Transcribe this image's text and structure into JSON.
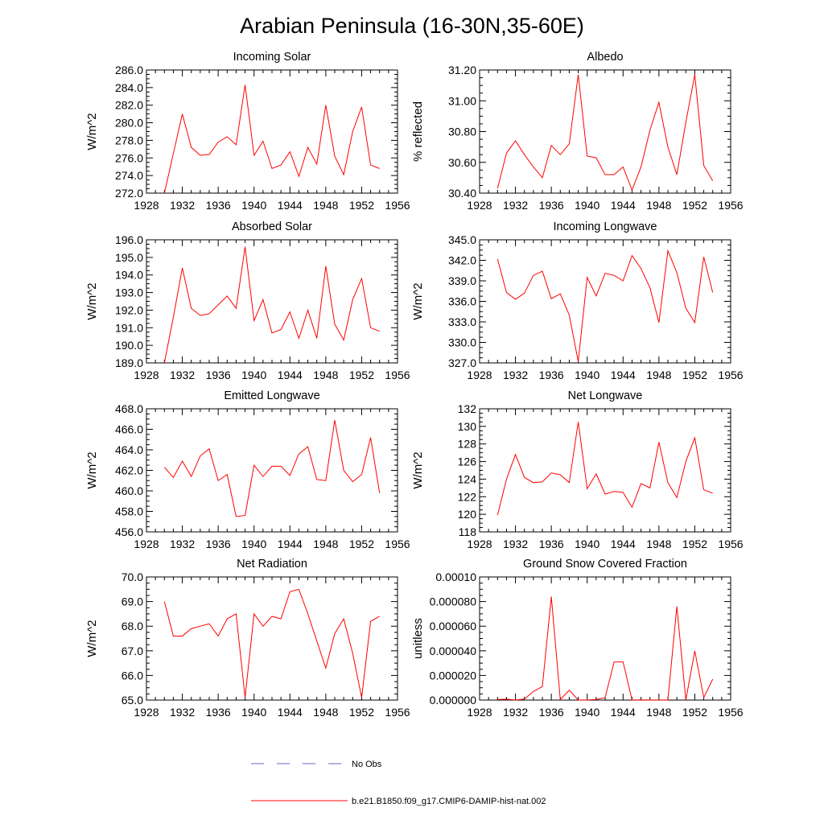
{
  "title": "Arabian Peninsula (16-30N,35-60E)",
  "legend": {
    "items": [
      {
        "label": "No Obs",
        "color": "#6666cc",
        "dashed": true
      },
      {
        "label": "b.e21.B1850.f09_g17.CMIP6-DAMIP-hist-nat.002",
        "color": "#ff0000",
        "dashed": false
      }
    ]
  },
  "chart_data": [
    {
      "type": "line",
      "title": "Incoming Solar",
      "ylabel": "W/m^2",
      "xlim": [
        1928,
        1956
      ],
      "ylim": [
        272,
        286
      ],
      "xticks": [
        1928,
        1932,
        1936,
        1940,
        1944,
        1948,
        1952,
        1956
      ],
      "xtick_labels": [
        "1928",
        "1932",
        "1936",
        "1940",
        "1944",
        "1948",
        "1952",
        "1956"
      ],
      "yticks": [
        272,
        274,
        276,
        278,
        280,
        282,
        284,
        286
      ],
      "ytick_labels": [
        "272.0",
        "274.0",
        "276.0",
        "278.0",
        "280.0",
        "282.0",
        "284.0",
        "286.0"
      ],
      "series": [
        {
          "x": [
            1930,
            1931,
            1932,
            1933,
            1934,
            1935,
            1936,
            1937,
            1938,
            1939,
            1940,
            1941,
            1942,
            1943,
            1944,
            1945,
            1946,
            1947,
            1948,
            1949,
            1950,
            1951,
            1952,
            1953,
            1954
          ],
          "y": [
            272.0,
            276.5,
            281.0,
            277.2,
            276.3,
            276.4,
            277.8,
            278.4,
            277.5,
            284.3,
            276.3,
            277.9,
            274.8,
            275.2,
            276.7,
            273.9,
            277.2,
            275.3,
            282.0,
            276.2,
            274.1,
            279.0,
            281.8,
            275.2,
            274.8
          ]
        }
      ]
    },
    {
      "type": "line",
      "title": "Albedo",
      "ylabel": "% reflected",
      "xlim": [
        1928,
        1956
      ],
      "ylim": [
        30.4,
        31.2
      ],
      "xticks": [
        1928,
        1932,
        1936,
        1940,
        1944,
        1948,
        1952,
        1956
      ],
      "xtick_labels": [
        "1928",
        "1932",
        "1936",
        "1940",
        "1944",
        "1948",
        "1952",
        "1956"
      ],
      "yticks": [
        30.4,
        30.6,
        30.8,
        31.0,
        31.2
      ],
      "ytick_labels": [
        "30.40",
        "30.60",
        "30.80",
        "31.00",
        "31.20"
      ],
      "series": [
        {
          "x": [
            1930,
            1931,
            1932,
            1933,
            1934,
            1935,
            1936,
            1937,
            1938,
            1939,
            1940,
            1941,
            1942,
            1943,
            1944,
            1945,
            1946,
            1947,
            1948,
            1949,
            1950,
            1951,
            1952,
            1953,
            1954
          ],
          "y": [
            30.43,
            30.66,
            30.74,
            30.65,
            30.57,
            30.5,
            30.71,
            30.65,
            30.72,
            31.17,
            30.64,
            30.63,
            30.52,
            30.52,
            30.57,
            30.42,
            30.57,
            30.81,
            30.99,
            30.7,
            30.52,
            30.86,
            31.17,
            30.58,
            30.48
          ]
        }
      ]
    },
    {
      "type": "line",
      "title": "Absorbed Solar",
      "ylabel": "W/m^2",
      "xlim": [
        1928,
        1956
      ],
      "ylim": [
        189,
        196
      ],
      "xticks": [
        1928,
        1932,
        1936,
        1940,
        1944,
        1948,
        1952,
        1956
      ],
      "xtick_labels": [
        "1928",
        "1932",
        "1936",
        "1940",
        "1944",
        "1948",
        "1952",
        "1956"
      ],
      "yticks": [
        189,
        190,
        191,
        192,
        193,
        194,
        195,
        196
      ],
      "ytick_labels": [
        "189.0",
        "190.0",
        "191.0",
        "192.0",
        "193.0",
        "194.0",
        "195.0",
        "196.0"
      ],
      "series": [
        {
          "x": [
            1930,
            1931,
            1932,
            1933,
            1934,
            1935,
            1936,
            1937,
            1938,
            1939,
            1940,
            1941,
            1942,
            1943,
            1944,
            1945,
            1946,
            1947,
            1948,
            1949,
            1950,
            1951,
            1952,
            1953,
            1954
          ],
          "y": [
            189.0,
            191.6,
            194.4,
            192.1,
            191.7,
            191.8,
            192.3,
            192.8,
            192.1,
            195.6,
            191.4,
            192.6,
            190.7,
            190.9,
            191.9,
            190.4,
            192.0,
            190.4,
            194.5,
            191.2,
            190.3,
            192.6,
            193.8,
            191.0,
            190.8
          ]
        }
      ]
    },
    {
      "type": "line",
      "title": "Incoming Longwave",
      "ylabel": "W/m^2",
      "xlim": [
        1928,
        1956
      ],
      "ylim": [
        327,
        345
      ],
      "xticks": [
        1928,
        1932,
        1936,
        1940,
        1944,
        1948,
        1952,
        1956
      ],
      "xtick_labels": [
        "1928",
        "1932",
        "1936",
        "1940",
        "1944",
        "1948",
        "1952",
        "1956"
      ],
      "yticks": [
        327,
        330,
        333,
        336,
        339,
        342,
        345
      ],
      "ytick_labels": [
        "327.0",
        "330.0",
        "333.0",
        "336.0",
        "339.0",
        "342.0",
        "345.0"
      ],
      "series": [
        {
          "x": [
            1930,
            1931,
            1932,
            1933,
            1934,
            1935,
            1936,
            1937,
            1938,
            1939,
            1940,
            1941,
            1942,
            1943,
            1944,
            1945,
            1946,
            1947,
            1948,
            1949,
            1950,
            1951,
            1952,
            1953,
            1954
          ],
          "y": [
            342.2,
            337.3,
            336.3,
            337.2,
            339.8,
            340.4,
            336.4,
            337.1,
            334.0,
            327.2,
            339.5,
            336.8,
            340.1,
            339.8,
            339.0,
            342.7,
            340.8,
            338.0,
            332.9,
            343.4,
            340.2,
            335.0,
            332.9,
            342.5,
            337.3
          ]
        }
      ]
    },
    {
      "type": "line",
      "title": "Emitted Longwave",
      "ylabel": "W/m^2",
      "xlim": [
        1928,
        1956
      ],
      "ylim": [
        456,
        468
      ],
      "xticks": [
        1928,
        1932,
        1936,
        1940,
        1944,
        1948,
        1952,
        1956
      ],
      "xtick_labels": [
        "1928",
        "1932",
        "1936",
        "1940",
        "1944",
        "1948",
        "1952",
        "1956"
      ],
      "yticks": [
        456,
        458,
        460,
        462,
        464,
        466,
        468
      ],
      "ytick_labels": [
        "456.0",
        "458.0",
        "460.0",
        "462.0",
        "464.0",
        "466.0",
        "468.0"
      ],
      "series": [
        {
          "x": [
            1930,
            1931,
            1932,
            1933,
            1934,
            1935,
            1936,
            1937,
            1938,
            1939,
            1940,
            1941,
            1942,
            1943,
            1944,
            1945,
            1946,
            1947,
            1948,
            1949,
            1950,
            1951,
            1952,
            1953,
            1954
          ],
          "y": [
            462.3,
            461.3,
            462.9,
            461.4,
            463.4,
            464.1,
            461.0,
            461.6,
            457.5,
            457.6,
            462.5,
            461.4,
            462.4,
            462.4,
            461.5,
            463.6,
            464.3,
            461.1,
            461.0,
            466.9,
            462.0,
            460.9,
            461.6,
            465.2,
            459.8
          ]
        }
      ]
    },
    {
      "type": "line",
      "title": "Net Longwave",
      "ylabel": "W/m^2",
      "xlim": [
        1928,
        1956
      ],
      "ylim": [
        118,
        132
      ],
      "xticks": [
        1928,
        1932,
        1936,
        1940,
        1944,
        1948,
        1952,
        1956
      ],
      "xtick_labels": [
        "1928",
        "1932",
        "1936",
        "1940",
        "1944",
        "1948",
        "1952",
        "1956"
      ],
      "yticks": [
        118,
        120,
        122,
        124,
        126,
        128,
        130,
        132
      ],
      "ytick_labels": [
        "118",
        "120",
        "122",
        "124",
        "126",
        "128",
        "130",
        "132"
      ],
      "series": [
        {
          "x": [
            1930,
            1931,
            1932,
            1933,
            1934,
            1935,
            1936,
            1937,
            1938,
            1939,
            1940,
            1941,
            1942,
            1943,
            1944,
            1945,
            1946,
            1947,
            1948,
            1949,
            1950,
            1951,
            1952,
            1953,
            1954
          ],
          "y": [
            119.9,
            124.0,
            126.8,
            124.2,
            123.6,
            123.7,
            124.7,
            124.5,
            123.6,
            130.5,
            122.9,
            124.6,
            122.3,
            122.6,
            122.5,
            120.8,
            123.5,
            123.0,
            128.2,
            123.6,
            121.9,
            126.0,
            128.7,
            122.8,
            122.4
          ]
        }
      ]
    },
    {
      "type": "line",
      "title": "Net Radiation",
      "ylabel": "W/m^2",
      "xlim": [
        1928,
        1956
      ],
      "ylim": [
        65,
        70
      ],
      "xticks": [
        1928,
        1932,
        1936,
        1940,
        1944,
        1948,
        1952,
        1956
      ],
      "xtick_labels": [
        "1928",
        "1932",
        "1936",
        "1940",
        "1944",
        "1948",
        "1952",
        "1956"
      ],
      "yticks": [
        65,
        66,
        67,
        68,
        69,
        70
      ],
      "ytick_labels": [
        "65.0",
        "66.0",
        "67.0",
        "68.0",
        "69.0",
        "70.0"
      ],
      "series": [
        {
          "x": [
            1930,
            1931,
            1932,
            1933,
            1934,
            1935,
            1936,
            1937,
            1938,
            1939,
            1940,
            1941,
            1942,
            1943,
            1944,
            1945,
            1946,
            1947,
            1948,
            1949,
            1950,
            1951,
            1952,
            1953,
            1954
          ],
          "y": [
            69.0,
            67.6,
            67.6,
            67.9,
            68.0,
            68.1,
            67.6,
            68.3,
            68.5,
            65.1,
            68.5,
            68.0,
            68.4,
            68.3,
            69.4,
            69.5,
            68.5,
            67.4,
            66.3,
            67.7,
            68.3,
            66.9,
            65.1,
            68.2,
            68.4
          ]
        }
      ]
    },
    {
      "type": "line",
      "title": "Ground Snow Covered Fraction",
      "ylabel": "unitless",
      "xlim": [
        1928,
        1956
      ],
      "ylim": [
        0,
        0.0001
      ],
      "xticks": [
        1928,
        1932,
        1936,
        1940,
        1944,
        1948,
        1952,
        1956
      ],
      "xtick_labels": [
        "1928",
        "1932",
        "1936",
        "1940",
        "1944",
        "1948",
        "1952",
        "1956"
      ],
      "yticks": [
        0,
        2e-05,
        4e-05,
        6e-05,
        8e-05,
        0.0001
      ],
      "ytick_labels": [
        "0.000000",
        "0.000020",
        "0.000040",
        "0.000060",
        "0.000080",
        "0.00010"
      ],
      "series": [
        {
          "x": [
            1930,
            1931,
            1932,
            1933,
            1934,
            1935,
            1936,
            1937,
            1938,
            1939,
            1940,
            1941,
            1942,
            1943,
            1944,
            1945,
            1946,
            1947,
            1948,
            1949,
            1950,
            1951,
            1952,
            1953,
            1954
          ],
          "y": [
            5e-07,
            7e-07,
            1e-07,
            8e-07,
            7e-06,
            1.1e-05,
            8.4e-05,
            5e-07,
            8e-06,
            1e-07,
            1e-07,
            5e-07,
            2e-06,
            3.1e-05,
            3.1e-05,
            1e-07,
            2e-07,
            1e-07,
            1e-07,
            1e-07,
            7.6e-05,
            1e-07,
            4e-05,
            2e-06,
            1.7e-05
          ]
        }
      ]
    }
  ]
}
